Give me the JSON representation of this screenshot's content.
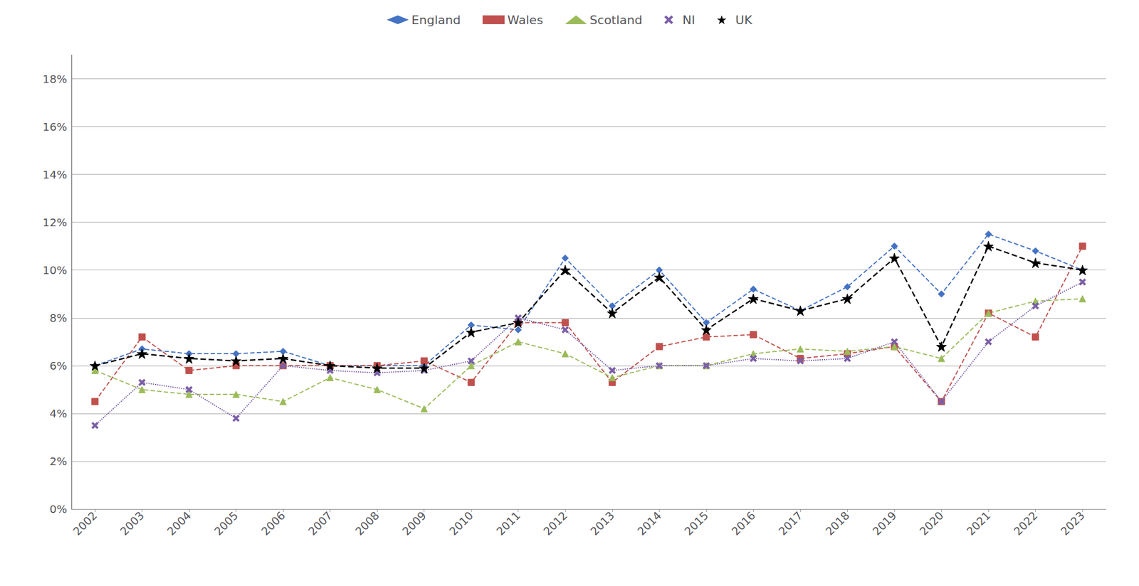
{
  "chart_data": {
    "type": "line",
    "x": [
      2002,
      2003,
      2004,
      2005,
      2006,
      2007,
      2008,
      2009,
      2010,
      2011,
      2012,
      2013,
      2014,
      2015,
      2016,
      2017,
      2018,
      2019,
      2020,
      2021,
      2022,
      2023
    ],
    "xlim": [
      2001.5,
      2023.5
    ],
    "xticks": [
      2002,
      2003,
      2004,
      2005,
      2006,
      2007,
      2008,
      2009,
      2010,
      2011,
      2012,
      2013,
      2014,
      2015,
      2016,
      2017,
      2018,
      2019,
      2020,
      2021,
      2022,
      2023
    ],
    "ylim": [
      0.0,
      0.19
    ],
    "yticks": [
      {
        "value": 0.0,
        "label": "0%"
      },
      {
        "value": 0.02,
        "label": "2%"
      },
      {
        "value": 0.04,
        "label": "4%"
      },
      {
        "value": 0.06,
        "label": "6%"
      },
      {
        "value": 0.08,
        "label": "8%"
      },
      {
        "value": 0.1,
        "label": "10%"
      },
      {
        "value": 0.12,
        "label": "12%"
      },
      {
        "value": 0.14,
        "label": "14%"
      },
      {
        "value": 0.16,
        "label": "16%"
      },
      {
        "value": 0.18,
        "label": "18%"
      }
    ],
    "grid": true,
    "legend": "top",
    "series": [
      {
        "name": "England",
        "color": "#4472C4",
        "line_style": "dashed",
        "marker": "diamond",
        "values": [
          0.06,
          0.067,
          0.065,
          0.065,
          0.066,
          0.06,
          0.06,
          0.06,
          0.077,
          0.075,
          0.105,
          0.085,
          0.1,
          0.078,
          0.092,
          0.083,
          0.093,
          0.11,
          0.09,
          0.115,
          0.108,
          0.1
        ]
      },
      {
        "name": "Wales",
        "color": "#C0504D",
        "line_style": "dashed",
        "marker": "square",
        "values": [
          0.045,
          0.072,
          0.058,
          0.06,
          0.06,
          0.06,
          0.06,
          0.062,
          0.053,
          0.078,
          0.078,
          0.053,
          0.068,
          0.072,
          0.073,
          0.063,
          0.065,
          0.068,
          0.045,
          0.082,
          0.072,
          0.11
        ]
      },
      {
        "name": "Scotland",
        "color": "#9BBB59",
        "line_style": "dashed",
        "marker": "triangle",
        "values": [
          0.058,
          0.05,
          0.048,
          0.048,
          0.045,
          0.055,
          0.05,
          0.042,
          0.06,
          0.07,
          0.065,
          0.055,
          0.06,
          0.06,
          0.065,
          0.067,
          0.066,
          0.068,
          0.063,
          0.082,
          0.087,
          0.088
        ]
      },
      {
        "name": "NI",
        "color": "#7B5EA7",
        "line_style": "dotted",
        "marker": "x",
        "values": [
          0.035,
          0.053,
          0.05,
          0.038,
          0.06,
          0.058,
          0.057,
          0.058,
          0.062,
          0.08,
          0.075,
          0.058,
          0.06,
          0.06,
          0.063,
          0.062,
          0.063,
          0.07,
          0.045,
          0.07,
          0.085,
          0.095
        ]
      },
      {
        "name": "UK",
        "color": "#000000",
        "line_style": "dashed",
        "marker": "star",
        "values": [
          0.06,
          0.065,
          0.063,
          0.062,
          0.063,
          0.06,
          0.059,
          0.059,
          0.074,
          0.078,
          0.1,
          0.082,
          0.097,
          0.075,
          0.088,
          0.083,
          0.088,
          0.105,
          0.068,
          0.11,
          0.103,
          0.1
        ]
      }
    ]
  }
}
